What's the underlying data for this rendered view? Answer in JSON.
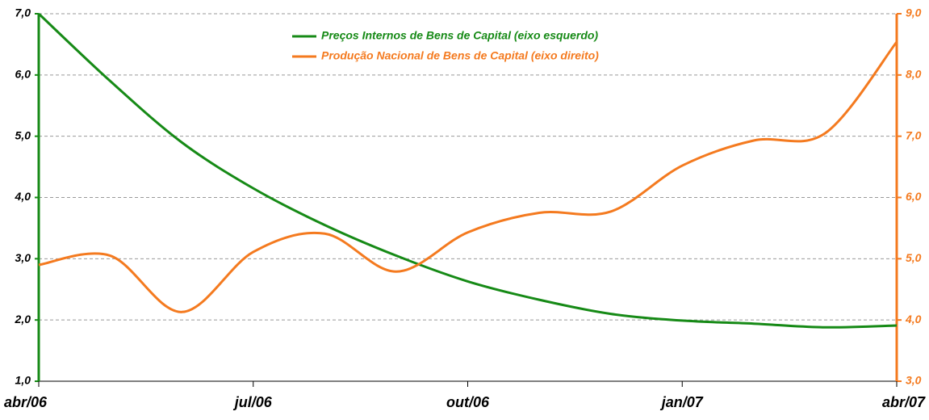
{
  "chart_data": {
    "type": "line",
    "categories": [
      "abr/06",
      null,
      null,
      "jul/06",
      null,
      null,
      "out/06",
      null,
      null,
      "jan/07",
      null,
      null,
      "abr/07"
    ],
    "series": [
      {
        "name": "Preços Internos de Bens de Capital (eixo esquerdo)",
        "color": "#168a16",
        "axis": "y",
        "values": [
          7.0,
          5.9,
          4.9,
          4.15,
          3.55,
          3.05,
          2.63,
          2.33,
          2.1,
          1.99,
          1.94,
          1.88,
          1.91
        ]
      },
      {
        "name": "Produção Nacional de Bens de Capital (eixo direito)",
        "color": "#f47a1f",
        "axis": "y2",
        "values": [
          4.9,
          5.05,
          4.13,
          5.11,
          5.41,
          4.79,
          5.43,
          5.75,
          5.77,
          6.52,
          6.93,
          7.05,
          8.54
        ]
      }
    ],
    "ylim": [
      1.0,
      7.0
    ],
    "yticks": [
      {
        "value": 1.0,
        "label": "1,0"
      },
      {
        "value": 2.0,
        "label": "2,0"
      },
      {
        "value": 3.0,
        "label": "3,0"
      },
      {
        "value": 4.0,
        "label": "4,0"
      },
      {
        "value": 5.0,
        "label": "5,0"
      },
      {
        "value": 6.0,
        "label": "6,0"
      },
      {
        "value": 7.0,
        "label": "7,0"
      }
    ],
    "y2lim": [
      3.0,
      9.0
    ],
    "y2ticks": [
      {
        "value": 3.0,
        "label": "3,0"
      },
      {
        "value": 4.0,
        "label": "4,0"
      },
      {
        "value": 5.0,
        "label": "5,0"
      },
      {
        "value": 6.0,
        "label": "6,0"
      },
      {
        "value": 7.0,
        "label": "7,0"
      },
      {
        "value": 8.0,
        "label": "8,0"
      },
      {
        "value": 9.0,
        "label": "9,0"
      }
    ],
    "grid": true,
    "smooth": true,
    "legend": "top"
  }
}
